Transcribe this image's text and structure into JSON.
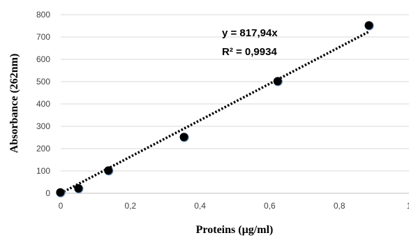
{
  "chart_data": {
    "type": "scatter",
    "x": [
      0,
      0.052,
      0.138,
      0.355,
      0.624,
      0.886
    ],
    "y": [
      2,
      20,
      100,
      250,
      500,
      750
    ],
    "xlabel": "Proteins (µg/ml)",
    "ylabel": "Absorbance (262nm)",
    "xlim": [
      0,
      1
    ],
    "ylim": [
      0,
      800
    ],
    "xticks": [
      "0",
      "0,2",
      "0,4",
      "0,6",
      "0,8",
      "1"
    ],
    "yticks": [
      "0",
      "100",
      "200",
      "300",
      "400",
      "500",
      "600",
      "700",
      "800"
    ],
    "grid": "horizontal",
    "trendline": {
      "type": "linear",
      "slope": 817.94,
      "intercept": 0,
      "style": "dotted"
    },
    "annotations": [
      "y = 817,94x",
      "R² = 0,9934"
    ],
    "colors": {
      "marker": "#000000",
      "marker_halo": "#4f81bd",
      "trendline": "#000000",
      "grid": "#d9d9d9"
    }
  }
}
